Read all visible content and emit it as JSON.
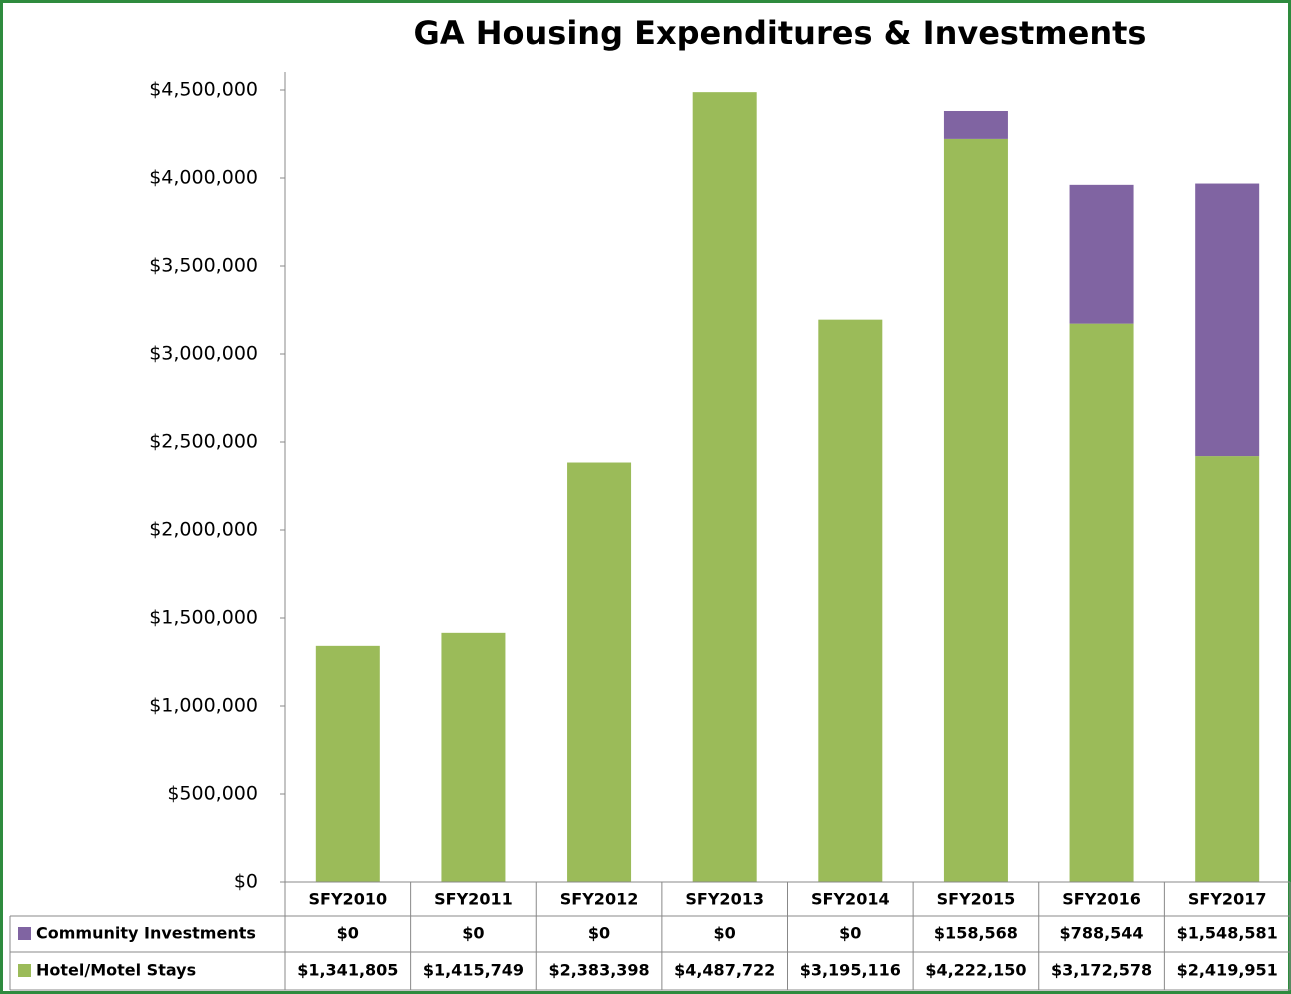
{
  "chart_data": {
    "type": "stacked_bar",
    "title": "GA Housing Expenditures & Investments",
    "categories": [
      "SFY2010",
      "SFY2011",
      "SFY2012",
      "SFY2013",
      "SFY2014",
      "SFY2015",
      "SFY2016",
      "SFY2017"
    ],
    "series": [
      {
        "name": "Community Investments",
        "color": "#8064a2",
        "values": [
          0,
          0,
          0,
          0,
          0,
          158568,
          788544,
          1548581
        ],
        "value_labels": [
          "$0",
          "$0",
          "$0",
          "$0",
          "$0",
          "$158,568",
          "$788,544",
          "$1,548,581"
        ]
      },
      {
        "name": "Hotel/Motel Stays",
        "color": "#9bbb59",
        "values": [
          1341805,
          1415749,
          2383398,
          4487722,
          3195116,
          4222150,
          3172578,
          2419951
        ],
        "value_labels": [
          "$1,341,805",
          "$1,415,749",
          "$2,383,398",
          "$4,487,722",
          "$3,195,116",
          "$4,222,150",
          "$3,172,578",
          "$2,419,951"
        ]
      }
    ],
    "ylim": [
      0,
      4500000
    ],
    "yticks": [
      {
        "value": 0,
        "label": "$0"
      },
      {
        "value": 500000,
        "label": "$500,000"
      },
      {
        "value": 1000000,
        "label": "$1,000,000"
      },
      {
        "value": 1500000,
        "label": "$1,500,000"
      },
      {
        "value": 2000000,
        "label": "$2,000,000"
      },
      {
        "value": 2500000,
        "label": "$2,500,000"
      },
      {
        "value": 3000000,
        "label": "$3,000,000"
      },
      {
        "value": 3500000,
        "label": "$3,500,000"
      },
      {
        "value": 4000000,
        "label": "$4,000,000"
      },
      {
        "value": 4500000,
        "label": "$4,500,000"
      }
    ],
    "grid": false,
    "stack_order": [
      1,
      0
    ]
  }
}
